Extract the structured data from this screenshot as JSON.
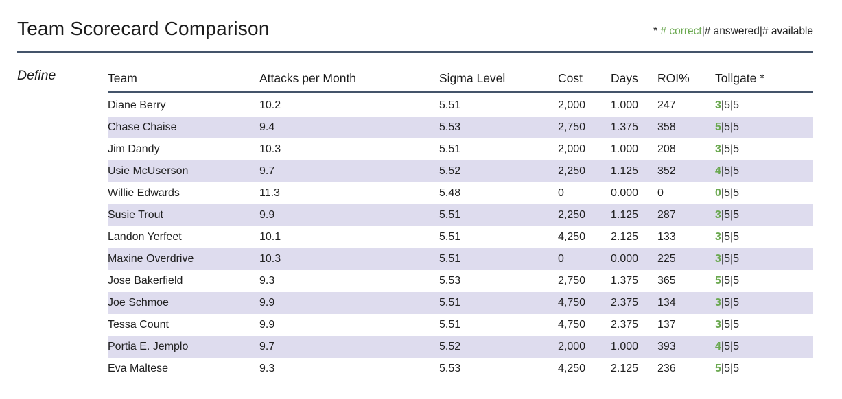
{
  "header": {
    "title": "Team Scorecard Comparison",
    "legend": {
      "star": "* ",
      "correct": "# correct",
      "rest": "|# answered|# available"
    }
  },
  "phase_label": "Define",
  "table": {
    "columns": [
      "Team",
      "Attacks per Month",
      "Sigma Level",
      "Cost",
      "Days",
      "ROI%",
      "Tollgate *"
    ],
    "rows": [
      {
        "team": "Diane Berry",
        "attacks": "10.2",
        "sigma": "5.51",
        "cost": "2,000",
        "days": "1.000",
        "roi": "247",
        "tollgate_correct": "3",
        "tollgate_rest": "|5|5"
      },
      {
        "team": "Chase Chaise",
        "attacks": "9.4",
        "sigma": "5.53",
        "cost": "2,750",
        "days": "1.375",
        "roi": "358",
        "tollgate_correct": "5",
        "tollgate_rest": "|5|5"
      },
      {
        "team": "Jim Dandy",
        "attacks": "10.3",
        "sigma": "5.51",
        "cost": "2,000",
        "days": "1.000",
        "roi": "208",
        "tollgate_correct": "3",
        "tollgate_rest": "|5|5"
      },
      {
        "team": "Usie McUserson",
        "attacks": "9.7",
        "sigma": "5.52",
        "cost": "2,250",
        "days": "1.125",
        "roi": "352",
        "tollgate_correct": "4",
        "tollgate_rest": "|5|5"
      },
      {
        "team": "Willie Edwards",
        "attacks": "11.3",
        "sigma": "5.48",
        "cost": "0",
        "days": "0.000",
        "roi": "0",
        "tollgate_correct": "0",
        "tollgate_rest": "|5|5"
      },
      {
        "team": "Susie Trout",
        "attacks": "9.9",
        "sigma": "5.51",
        "cost": "2,250",
        "days": "1.125",
        "roi": "287",
        "tollgate_correct": "3",
        "tollgate_rest": "|5|5"
      },
      {
        "team": "Landon Yerfeet",
        "attacks": "10.1",
        "sigma": "5.51",
        "cost": "4,250",
        "days": "2.125",
        "roi": "133",
        "tollgate_correct": "3",
        "tollgate_rest": "|5|5"
      },
      {
        "team": "Maxine Overdrive",
        "attacks": "10.3",
        "sigma": "5.51",
        "cost": "0",
        "days": "0.000",
        "roi": "225",
        "tollgate_correct": "3",
        "tollgate_rest": "|5|5"
      },
      {
        "team": "Jose Bakerfield",
        "attacks": "9.3",
        "sigma": "5.53",
        "cost": "2,750",
        "days": "1.375",
        "roi": "365",
        "tollgate_correct": "5",
        "tollgate_rest": "|5|5"
      },
      {
        "team": "Joe Schmoe",
        "attacks": "9.9",
        "sigma": "5.51",
        "cost": "4,750",
        "days": "2.375",
        "roi": "134",
        "tollgate_correct": "3",
        "tollgate_rest": "|5|5"
      },
      {
        "team": "Tessa Count",
        "attacks": "9.9",
        "sigma": "5.51",
        "cost": "4,750",
        "days": "2.375",
        "roi": "137",
        "tollgate_correct": "3",
        "tollgate_rest": "|5|5"
      },
      {
        "team": "Portia E. Jemplo",
        "attacks": "9.7",
        "sigma": "5.52",
        "cost": "2,000",
        "days": "1.000",
        "roi": "393",
        "tollgate_correct": "4",
        "tollgate_rest": "|5|5"
      },
      {
        "team": "Eva Maltese",
        "attacks": "9.3",
        "sigma": "5.53",
        "cost": "4,250",
        "days": "2.125",
        "roi": "236",
        "tollgate_correct": "5",
        "tollgate_rest": "|5|5"
      }
    ]
  },
  "colors": {
    "accent_green": "#6aa84f",
    "rule_navy": "#44546a",
    "row_shade": "#dedcee",
    "text_dark": "#212121"
  }
}
